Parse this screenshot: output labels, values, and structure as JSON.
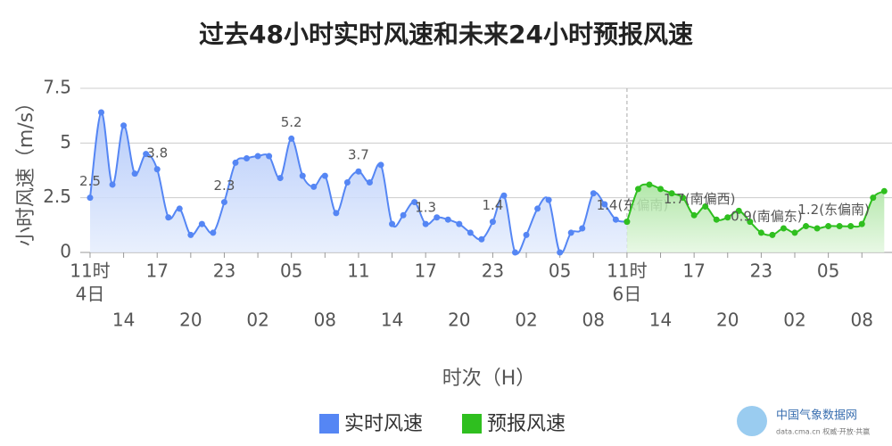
{
  "chart_data": {
    "type": "line",
    "title": "过去48小时实时风速和未来24小时预报风速",
    "y_label": "小时风速（m/s）",
    "x_label": "时次（H）",
    "categories": [
      "11时",
      null,
      null,
      "14",
      null,
      null,
      "17",
      null,
      null,
      "20",
      null,
      null,
      "23",
      null,
      null,
      "02",
      null,
      null,
      "05",
      null,
      null,
      "08",
      null,
      null,
      "11",
      null,
      null,
      "14",
      null,
      null,
      "17",
      null,
      null,
      "20",
      null,
      null,
      "23",
      null,
      null,
      "02",
      null,
      null,
      "05",
      null,
      null,
      "08",
      null,
      null,
      "11时",
      null,
      null,
      "14",
      null,
      null,
      "17",
      null,
      null,
      "20",
      null,
      null,
      "23",
      null,
      null,
      "02",
      null,
      null,
      "05",
      null,
      null,
      "08",
      null,
      null
    ],
    "day_labels": [
      {
        "index": 0,
        "label": "4日"
      },
      {
        "index": 48,
        "label": "6日"
      }
    ],
    "ylim": [
      0,
      7.5
    ],
    "yticks": [
      0,
      2.5,
      5,
      7.5
    ],
    "grid": true,
    "series": [
      {
        "name": "实时风速",
        "color": "#5586f4",
        "fill": "#c9d8fb",
        "values": [
          2.5,
          6.4,
          3.1,
          5.8,
          3.6,
          4.5,
          3.8,
          1.6,
          2.0,
          0.8,
          1.3,
          0.9,
          2.3,
          4.1,
          4.3,
          4.4,
          4.4,
          3.4,
          5.2,
          3.5,
          3.0,
          3.5,
          1.8,
          3.2,
          3.7,
          3.2,
          4.0,
          1.3,
          1.7,
          2.3,
          1.3,
          1.6,
          1.5,
          1.3,
          0.9,
          0.6,
          1.4,
          2.6,
          0.0,
          0.8,
          2.0,
          2.4,
          0.0,
          0.9,
          1.1,
          2.7,
          2.2,
          1.5,
          1.4,
          null,
          null,
          null,
          null,
          null,
          null,
          null,
          null,
          null,
          null,
          null,
          null,
          null,
          null,
          null,
          null,
          null,
          null,
          null,
          null,
          null,
          null,
          null
        ],
        "value_labels": [
          "2.5",
          null,
          null,
          null,
          null,
          null,
          "3.8",
          null,
          null,
          null,
          null,
          null,
          "2.3",
          null,
          null,
          null,
          null,
          null,
          "5.2",
          null,
          null,
          null,
          null,
          null,
          "3.7",
          null,
          null,
          null,
          null,
          null,
          "1.3",
          null,
          null,
          null,
          null,
          null,
          "1.4",
          null,
          null,
          null,
          null,
          null,
          null,
          null,
          null,
          null,
          null,
          null,
          "1.4(东偏南)",
          null,
          null,
          null,
          null,
          null,
          null,
          null,
          null,
          null,
          null,
          null,
          null,
          null,
          null,
          null,
          null,
          null,
          null,
          null,
          null,
          null,
          null,
          null
        ]
      },
      {
        "name": "预报风速",
        "color": "#2fbf1f",
        "fill": "#c8edc2",
        "values": [
          null,
          null,
          null,
          null,
          null,
          null,
          null,
          null,
          null,
          null,
          null,
          null,
          null,
          null,
          null,
          null,
          null,
          null,
          null,
          null,
          null,
          null,
          null,
          null,
          null,
          null,
          null,
          null,
          null,
          null,
          null,
          null,
          null,
          null,
          null,
          null,
          null,
          null,
          null,
          null,
          null,
          null,
          null,
          null,
          null,
          null,
          null,
          null,
          1.4,
          2.9,
          3.1,
          2.9,
          2.7,
          2.5,
          1.7,
          2.1,
          1.5,
          1.6,
          1.9,
          1.4,
          0.9,
          0.8,
          1.1,
          0.9,
          1.2,
          1.1,
          1.2,
          1.2,
          1.2,
          1.3,
          2.5,
          2.8
        ],
        "value_labels": [
          null,
          null,
          null,
          null,
          null,
          null,
          null,
          null,
          null,
          null,
          null,
          null,
          null,
          null,
          null,
          null,
          null,
          null,
          null,
          null,
          null,
          null,
          null,
          null,
          null,
          null,
          null,
          null,
          null,
          null,
          null,
          null,
          null,
          null,
          null,
          null,
          null,
          null,
          null,
          null,
          null,
          null,
          null,
          null,
          null,
          null,
          null,
          null,
          null,
          null,
          null,
          null,
          null,
          null,
          "1.7(南偏西)",
          null,
          null,
          null,
          null,
          null,
          "0.9(南偏东)",
          null,
          null,
          null,
          null,
          null,
          "1.2(东偏南)",
          null,
          null,
          null,
          null,
          null
        ]
      }
    ]
  },
  "watermark": {
    "name": "中国气象数据网",
    "url": "data.cma.cn 权威·开放·共赢"
  }
}
